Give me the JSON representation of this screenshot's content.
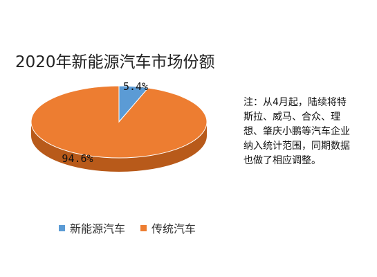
{
  "chart_data": {
    "type": "pie",
    "title": "2020年新能源汽车市场份额",
    "three_d": true,
    "categories": [
      "新能源汽车",
      "传统汽车"
    ],
    "values": [
      5.4,
      94.6
    ],
    "data_labels": [
      "5.4%",
      "94.6%"
    ],
    "colors": [
      "#5b9bd5",
      "#ed7d31"
    ],
    "legend_position": "bottom"
  },
  "annotation": {
    "text": "注：从4月起，陆续将特斯拉、威马、合众、理想、肇庆小鹏等汽车企业纳入统计范围，同期数据也做了相应调整。"
  },
  "colors": {
    "series_1": "#5b9bd5",
    "series_2": "#ed7d31",
    "series_2_side": "#b85a1a",
    "series_1_side": "#3f77ab"
  }
}
